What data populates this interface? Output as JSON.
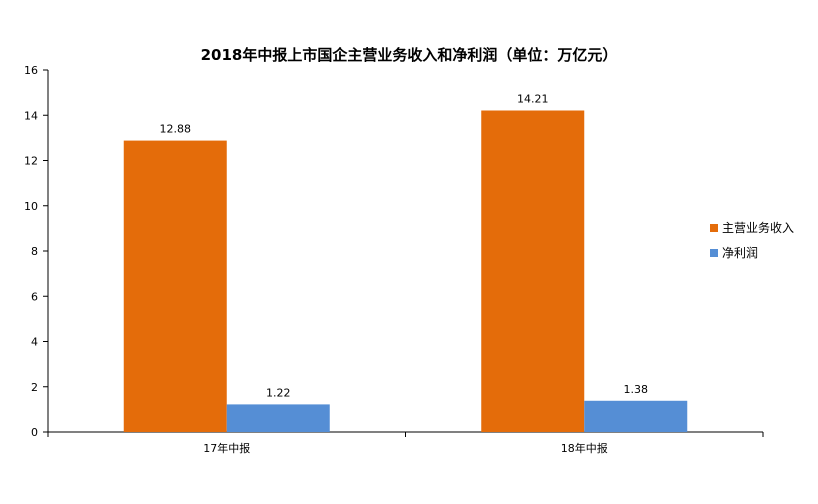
{
  "chart_data": {
    "type": "bar",
    "title": "2018年中报上市国企主营业务收入和净利润（单位：万亿元）",
    "xlabel": "",
    "ylabel": "",
    "categories": [
      "17年中报",
      "18年中报"
    ],
    "series": [
      {
        "name": "主营业务收入",
        "values": [
          12.88,
          14.21
        ],
        "color": "#E46C0A"
      },
      {
        "name": "净利润",
        "values": [
          1.22,
          1.38
        ],
        "color": "#558ED5"
      }
    ],
    "data_labels": [
      [
        "12.88",
        "14.21"
      ],
      [
        "1.22",
        "1.38"
      ]
    ],
    "ylim": [
      0,
      16
    ],
    "yticks": [
      "0",
      "2",
      "4",
      "6",
      "8",
      "10",
      "12",
      "14",
      "16"
    ],
    "grid": false,
    "legend_position": "right"
  }
}
